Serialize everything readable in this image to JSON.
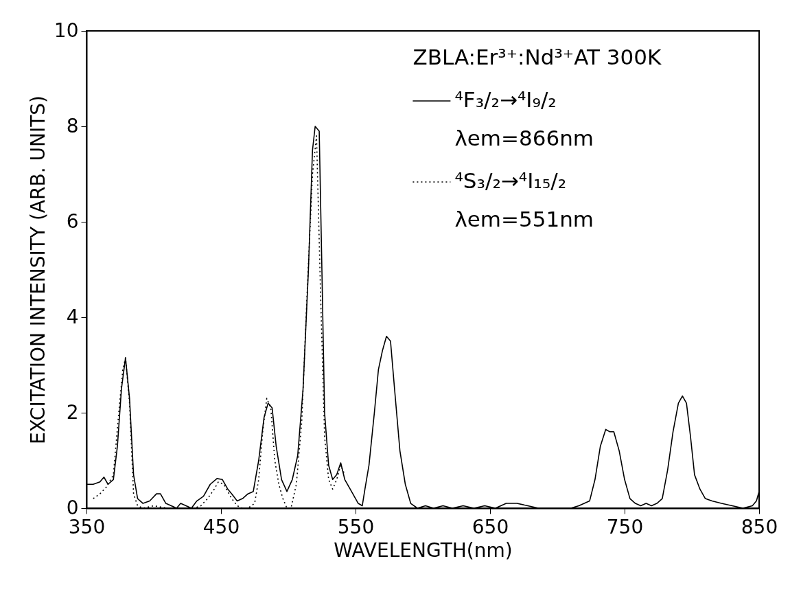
{
  "chart_data": {
    "type": "line",
    "xlabel": "WAVELENGTH(nm)",
    "ylabel": "EXCITATION INTENSITY (ARB. UNITS)",
    "xlim": [
      350,
      850
    ],
    "xticks": [
      350,
      450,
      550,
      650,
      750,
      850
    ],
    "ylim": [
      0,
      10
    ],
    "yticks": [
      0,
      2,
      4,
      6,
      8,
      10
    ],
    "grid": false,
    "legend": "top right",
    "marker": "none",
    "annotations": [
      "ZBLA:Er³⁺:Nd³⁺AT 300K",
      "λem=866nm",
      "λem=551nm"
    ],
    "series": [
      {
        "name": "⁴F₃/₂→⁴I₉/₂",
        "color": "#000000",
        "line_style": "solid",
        "x": [
          350,
          355,
          360,
          363,
          366,
          370,
          373,
          376,
          379,
          382,
          385,
          388,
          392,
          397,
          402,
          405,
          409,
          413,
          417,
          420,
          424,
          428,
          432,
          437,
          442,
          447,
          451,
          455,
          458,
          462,
          466,
          470,
          474,
          478,
          482,
          485,
          488,
          491,
          495,
          499,
          503,
          507,
          511,
          515,
          518,
          520,
          523,
          525,
          527,
          530,
          533,
          536,
          539,
          542,
          547,
          552,
          555,
          557,
          560,
          564,
          567,
          570,
          573,
          576,
          579,
          583,
          587,
          591,
          596,
          602,
          608,
          615,
          622,
          630,
          638,
          646,
          654,
          662,
          670,
          678,
          686,
          694,
          702,
          710,
          716,
          720,
          724,
          728,
          732,
          736,
          739,
          742,
          746,
          750,
          754,
          758,
          762,
          766,
          770,
          774,
          778,
          782,
          786,
          790,
          793,
          796,
          799,
          802,
          806,
          810,
          815,
          822,
          830,
          838,
          845,
          848,
          850
        ],
        "values": [
          0.5,
          0.5,
          0.55,
          0.65,
          0.5,
          0.6,
          1.3,
          2.5,
          3.15,
          2.3,
          0.7,
          0.2,
          0.1,
          0.15,
          0.3,
          0.3,
          0.1,
          0.05,
          0.0,
          0.1,
          0.05,
          0.0,
          0.15,
          0.25,
          0.5,
          0.62,
          0.6,
          0.4,
          0.3,
          0.15,
          0.2,
          0.3,
          0.35,
          1.0,
          1.9,
          2.2,
          2.1,
          1.3,
          0.6,
          0.35,
          0.6,
          1.1,
          2.5,
          5.0,
          7.5,
          8.0,
          7.9,
          5.0,
          2.0,
          0.9,
          0.6,
          0.7,
          0.95,
          0.6,
          0.35,
          0.1,
          0.05,
          0.4,
          0.9,
          2.0,
          2.9,
          3.3,
          3.6,
          3.5,
          2.5,
          1.2,
          0.5,
          0.1,
          0.0,
          0.05,
          0.0,
          0.05,
          0.0,
          0.05,
          0.0,
          0.05,
          0.0,
          0.1,
          0.1,
          0.05,
          0.0,
          0.0,
          0.0,
          0.0,
          0.05,
          0.1,
          0.15,
          0.6,
          1.3,
          1.65,
          1.6,
          1.6,
          1.2,
          0.6,
          0.2,
          0.1,
          0.05,
          0.1,
          0.05,
          0.1,
          0.2,
          0.8,
          1.6,
          2.2,
          2.35,
          2.2,
          1.5,
          0.7,
          0.4,
          0.2,
          0.15,
          0.1,
          0.05,
          0.0,
          0.05,
          0.15,
          0.35
        ]
      },
      {
        "name": "⁴S₃/₂→⁴I₁₅/₂",
        "color": "#000000",
        "line_style": "dotted",
        "x": [
          355,
          360,
          365,
          370,
          374,
          377,
          379,
          382,
          385,
          388,
          392,
          400,
          410,
          420,
          430,
          435,
          440,
          445,
          448,
          452,
          455,
          458,
          462,
          466,
          470,
          475,
          478,
          481,
          484,
          487,
          490,
          493,
          496,
          499,
          502,
          506,
          510,
          514,
          518,
          521,
          524,
          527,
          530,
          533,
          536,
          539,
          542
        ],
        "values": [
          0.2,
          0.3,
          0.45,
          0.7,
          2.0,
          2.9,
          3.15,
          2.2,
          0.3,
          0.05,
          0.0,
          0.05,
          0.0,
          0.0,
          0.0,
          0.05,
          0.2,
          0.4,
          0.55,
          0.5,
          0.35,
          0.2,
          0.05,
          0.0,
          0.0,
          0.1,
          0.6,
          1.6,
          2.3,
          2.1,
          1.0,
          0.5,
          0.2,
          0.0,
          0.0,
          0.5,
          1.8,
          4.5,
          7.0,
          7.8,
          4.5,
          1.5,
          0.6,
          0.4,
          0.6,
          0.9,
          0.7
        ]
      }
    ]
  }
}
